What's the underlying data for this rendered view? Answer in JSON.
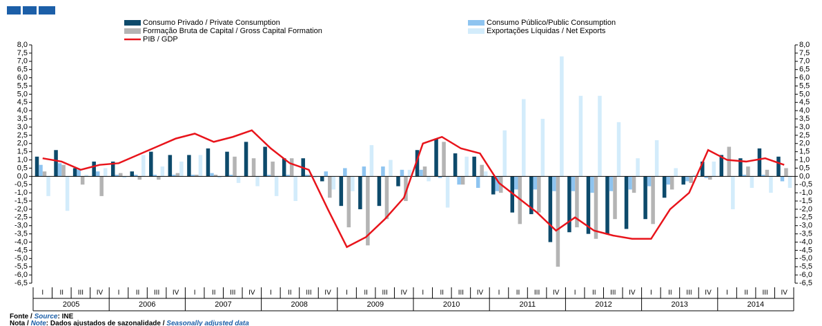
{
  "chart_data": {
    "type": "bar",
    "legend": [
      "Consumo Privado / Private Consumption",
      "Consumo Público/Public Consumption",
      "Formação Bruta de Capital / Gross Capital Formation",
      "Exportações Líquidas / Net Exports",
      "PIB / GDP"
    ],
    "categories": [
      "I",
      "II",
      "III",
      "IV",
      "I",
      "II",
      "III",
      "IV",
      "I",
      "II",
      "III",
      "IV",
      "I",
      "II",
      "III",
      "IV",
      "I",
      "II",
      "III",
      "IV",
      "I",
      "II",
      "III",
      "IV",
      "I",
      "II",
      "III",
      "IV",
      "I",
      "II",
      "III",
      "IV",
      "I",
      "II",
      "III",
      "IV",
      "I",
      "II",
      "III",
      "IV"
    ],
    "years": [
      "2005",
      "2006",
      "2007",
      "2008",
      "2009",
      "2010",
      "2011",
      "2012",
      "2013",
      "2014"
    ],
    "series": [
      {
        "name": "Consumo Privado / Private Consumption",
        "color": "#0d4a6b",
        "values": [
          1.2,
          1.6,
          0.5,
          0.9,
          0.9,
          0.3,
          1.5,
          1.3,
          1.3,
          1.7,
          1.5,
          2.1,
          1.8,
          1.1,
          1.1,
          -0.3,
          -1.8,
          -2.0,
          -1.8,
          -0.6,
          1.6,
          2.3,
          1.4,
          1.2,
          -1.1,
          -2.2,
          -2.3,
          -4.0,
          -3.4,
          -3.5,
          -3.5,
          -3.2,
          -2.6,
          -1.3,
          -0.5,
          0.9,
          1.3,
          1.1,
          1.7,
          1.2
        ]
      },
      {
        "name": "Consumo Público/Public Consumption",
        "color": "#8ec4f0",
        "values": [
          0.7,
          0.8,
          0.4,
          0.3,
          0.1,
          0.1,
          0.1,
          0.1,
          0.1,
          0.2,
          0.1,
          0.0,
          0.1,
          0.1,
          0.1,
          0.3,
          0.5,
          0.6,
          0.6,
          0.4,
          0.4,
          -0.1,
          -0.5,
          -0.7,
          -0.9,
          -0.8,
          -0.8,
          -0.9,
          -0.9,
          -1.0,
          -0.9,
          -0.8,
          -0.6,
          -0.5,
          -0.3,
          -0.1,
          0.0,
          0.1,
          0.1,
          -0.3
        ]
      },
      {
        "name": "Formação Bruta de Capital / Gross Capital Formation",
        "color": "#b4b4b4",
        "values": [
          0.3,
          0.7,
          -0.5,
          -1.2,
          0.2,
          -0.2,
          -0.2,
          0.2,
          0.1,
          0.1,
          1.2,
          1.1,
          0.9,
          1.1,
          0.1,
          -1.3,
          -3.1,
          -4.2,
          -2.6,
          -1.5,
          0.6,
          2.1,
          -0.5,
          0.7,
          -1.0,
          -2.9,
          -2.2,
          -5.5,
          -3.1,
          -3.8,
          -2.6,
          -1.0,
          -2.9,
          -0.8,
          -0.4,
          -0.2,
          1.8,
          0.6,
          0.4,
          0.5
        ]
      },
      {
        "name": "Exportações Líquidas / Net Exports",
        "color": "#d3ecfb",
        "values": [
          -1.2,
          -2.1,
          0.1,
          0.5,
          -0.1,
          1.3,
          0.6,
          0.9,
          1.3,
          -0.1,
          -0.4,
          -0.6,
          -1.2,
          -1.5,
          -0.1,
          -0.8,
          -0.9,
          1.9,
          1.0,
          0.4,
          -0.3,
          -1.9,
          1.2,
          0.3,
          2.8,
          4.7,
          3.5,
          7.3,
          4.9,
          4.9,
          3.3,
          1.1,
          2.2,
          0.5,
          0.1,
          0.9,
          -2.0,
          -0.7,
          -1.0,
          -0.7
        ]
      },
      {
        "name": "PIB / GDP",
        "color": "#e8141b",
        "kind": "line",
        "values": [
          1.1,
          0.9,
          0.4,
          0.7,
          0.8,
          1.3,
          1.8,
          2.3,
          2.6,
          2.1,
          2.4,
          2.8,
          1.7,
          0.8,
          0.4,
          -2.0,
          -4.3,
          -3.7,
          -2.6,
          -1.3,
          2.0,
          2.4,
          1.7,
          1.4,
          -0.4,
          -1.3,
          -2.2,
          -3.3,
          -2.5,
          -3.3,
          -3.6,
          -3.8,
          -3.8,
          -2.0,
          -1.0,
          1.6,
          1.0,
          0.9,
          1.1,
          0.7
        ]
      }
    ],
    "ylim": [
      -6.5,
      8.0
    ],
    "yticks": [
      {
        "value": 8.0,
        "label": "8,0"
      },
      {
        "value": 7.5,
        "label": "7,5"
      },
      {
        "value": 7.0,
        "label": "7,0"
      },
      {
        "value": 6.5,
        "label": "6,5"
      },
      {
        "value": 6.0,
        "label": "6,0"
      },
      {
        "value": 5.5,
        "label": "5,5"
      },
      {
        "value": 5.0,
        "label": "5,0"
      },
      {
        "value": 4.5,
        "label": "4,5"
      },
      {
        "value": 4.0,
        "label": "4,0"
      },
      {
        "value": 3.5,
        "label": "3,5"
      },
      {
        "value": 3.0,
        "label": "3,0"
      },
      {
        "value": 2.5,
        "label": "2,5"
      },
      {
        "value": 2.0,
        "label": "2,0"
      },
      {
        "value": 1.5,
        "label": "1,5"
      },
      {
        "value": 1.0,
        "label": "1,0"
      },
      {
        "value": 0.5,
        "label": "0,5"
      },
      {
        "value": 0.0,
        "label": "0,0"
      },
      {
        "value": -0.5,
        "label": "-0,5"
      },
      {
        "value": -1.0,
        "label": "-1,0"
      },
      {
        "value": -1.5,
        "label": "-1,5"
      },
      {
        "value": -2.0,
        "label": "-2,0"
      },
      {
        "value": -2.5,
        "label": "-2,5"
      },
      {
        "value": -3.0,
        "label": "-3,0"
      },
      {
        "value": -3.5,
        "label": "-3,5"
      },
      {
        "value": -4.0,
        "label": "-4,0"
      },
      {
        "value": -4.5,
        "label": "-4,5"
      },
      {
        "value": -5.0,
        "label": "-5,0"
      },
      {
        "value": -5.5,
        "label": "-5,5"
      },
      {
        "value": -6.0,
        "label": "-6,0"
      },
      {
        "value": -6.5,
        "label": "-6,5"
      }
    ],
    "y2lim": [
      -6.5,
      8.0
    ],
    "y2ticks": [
      {
        "value": 8.0,
        "label": "8,0"
      },
      {
        "value": 7.5,
        "label": "7,5"
      },
      {
        "value": 7.0,
        "label": "7,0"
      },
      {
        "value": 6.5,
        "label": "6,5"
      },
      {
        "value": 6.0,
        "label": "6,0"
      },
      {
        "value": 5.5,
        "label": "5,5"
      },
      {
        "value": 5.0,
        "label": "5,0"
      },
      {
        "value": 4.5,
        "label": "4,5"
      },
      {
        "value": 4.0,
        "label": "4,0"
      },
      {
        "value": 3.5,
        "label": "3,5"
      },
      {
        "value": 3.0,
        "label": "3,0"
      },
      {
        "value": 2.5,
        "label": "2,5"
      },
      {
        "value": 2.0,
        "label": "2,0"
      },
      {
        "value": 1.5,
        "label": "1,5"
      },
      {
        "value": 1.0,
        "label": "1,0"
      },
      {
        "value": 0.5,
        "label": "0,5"
      },
      {
        "value": 0.0,
        "label": "0,0"
      },
      {
        "value": -0.5,
        "label": "-0,5"
      },
      {
        "value": -1.0,
        "label": "-1,0"
      },
      {
        "value": -1.5,
        "label": "-1,5"
      },
      {
        "value": -2.0,
        "label": "-2,0"
      },
      {
        "value": -2.5,
        "label": "-2,5"
      },
      {
        "value": -3.0,
        "label": "-3,0"
      },
      {
        "value": -3.5,
        "label": "-3,5"
      },
      {
        "value": -4.0,
        "label": "-4,0"
      },
      {
        "value": -4.5,
        "label": "-4,5"
      },
      {
        "value": -5.0,
        "label": "-5,0"
      },
      {
        "value": -5.5,
        "label": "-5,5"
      },
      {
        "value": -6.0,
        "label": "-6,0"
      },
      {
        "value": -6.5,
        "label": "-6,5"
      }
    ],
    "source_label": "Fonte / ",
    "source_word": "Source",
    "source_text": ":  INE",
    "note_label": "Nota / ",
    "note_word": "Note",
    "note_text": ": Dados ajustados de sazonalidade / ",
    "note_english": "Seasonally adjusted data"
  }
}
